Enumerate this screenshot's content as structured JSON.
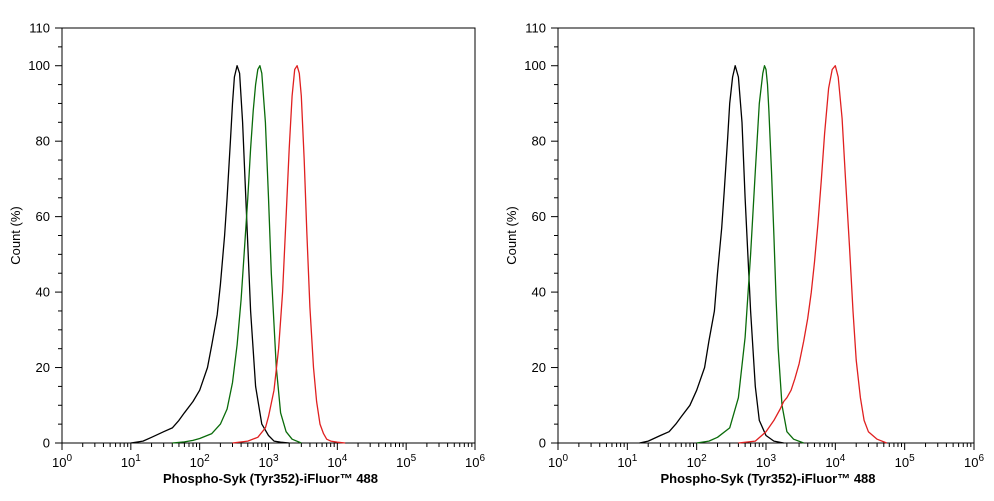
{
  "chart_data": [
    {
      "type": "line",
      "title": "",
      "xlabel": "Phospho-Syk (Tyr352)-iFluor™ 488",
      "ylabel": "Count  (%)",
      "x_scale": "log10",
      "xlim": [
        1,
        1000000
      ],
      "ylim": [
        0,
        110
      ],
      "x_ticks": [
        "10^0",
        "10^1",
        "10^2",
        "10^3",
        "10^4",
        "10^5",
        "10^6"
      ],
      "y_ticks": [
        0,
        20,
        40,
        60,
        80,
        100,
        110
      ],
      "grid": false,
      "legend": "none",
      "series": [
        {
          "color": "#000000",
          "x": [
            10,
            15,
            20,
            30,
            40,
            50,
            60,
            80,
            100,
            130,
            150,
            180,
            200,
            230,
            250,
            280,
            300,
            320,
            350,
            380,
            420,
            480,
            550,
            650,
            800,
            1000,
            1200,
            1500,
            2000
          ],
          "y": [
            0,
            0.5,
            1.5,
            3,
            4,
            6,
            8,
            11,
            14,
            20,
            26,
            34,
            42,
            55,
            65,
            80,
            90,
            97,
            100,
            98,
            85,
            60,
            35,
            15,
            5,
            2,
            0.5,
            0.2,
            0
          ]
        },
        {
          "color": "#0a6b0a",
          "x": [
            40,
            60,
            80,
            100,
            150,
            200,
            250,
            300,
            350,
            400,
            450,
            500,
            550,
            600,
            650,
            700,
            750,
            800,
            900,
            1000,
            1100,
            1300,
            1500,
            1800,
            2200,
            3000
          ],
          "y": [
            0,
            0.3,
            0.7,
            1.2,
            2.5,
            5,
            9,
            16,
            26,
            38,
            52,
            65,
            78,
            88,
            95,
            99,
            100,
            98,
            85,
            65,
            45,
            20,
            8,
            3,
            1,
            0
          ]
        },
        {
          "color": "#e02020",
          "x": [
            300,
            500,
            700,
            900,
            1000,
            1200,
            1400,
            1600,
            1800,
            2000,
            2200,
            2400,
            2600,
            2800,
            3000,
            3300,
            3600,
            4000,
            4500,
            5000,
            5600,
            6300,
            7000,
            8000,
            10000,
            13000
          ],
          "y": [
            0,
            0.5,
            1.5,
            4,
            7,
            14,
            25,
            40,
            60,
            78,
            92,
            99,
            100,
            98,
            92,
            75,
            56,
            36,
            20,
            11,
            5,
            2.5,
            1,
            0.5,
            0.2,
            0
          ]
        }
      ]
    },
    {
      "type": "line",
      "title": "",
      "xlabel": "Phospho-Syk (Tyr352)-iFluor™ 488",
      "ylabel": "Count  (%)",
      "x_scale": "log10",
      "xlim": [
        1,
        1000000
      ],
      "ylim": [
        0,
        110
      ],
      "x_ticks": [
        "10^0",
        "10^1",
        "10^2",
        "10^3",
        "10^4",
        "10^5",
        "10^6"
      ],
      "y_ticks": [
        0,
        20,
        40,
        60,
        80,
        100,
        110
      ],
      "grid": false,
      "legend": "none",
      "series": [
        {
          "color": "#000000",
          "x": [
            15,
            20,
            30,
            40,
            50,
            60,
            80,
            100,
            130,
            150,
            180,
            200,
            230,
            250,
            280,
            300,
            330,
            360,
            400,
            450,
            500,
            600,
            700,
            800,
            1000,
            1300,
            1800
          ],
          "y": [
            0,
            0.5,
            2,
            3,
            5,
            7,
            10,
            14,
            20,
            27,
            35,
            45,
            57,
            67,
            81,
            90,
            97,
            100,
            97,
            85,
            65,
            35,
            15,
            6,
            2,
            0.5,
            0
          ]
        },
        {
          "color": "#0a6b0a",
          "x": [
            100,
            150,
            200,
            300,
            400,
            500,
            600,
            700,
            800,
            900,
            950,
            1000,
            1050,
            1100,
            1200,
            1300,
            1400,
            1500,
            1700,
            2000,
            2500,
            3500
          ],
          "y": [
            0,
            0.5,
            1.5,
            4,
            12,
            28,
            50,
            72,
            90,
            98,
            100,
            99,
            95,
            88,
            72,
            55,
            38,
            25,
            10,
            3,
            1,
            0
          ]
        },
        {
          "color": "#e02020",
          "x": [
            400,
            700,
            1000,
            1300,
            1600,
            1800,
            2000,
            2300,
            2600,
            3000,
            3500,
            4000,
            4500,
            5000,
            5600,
            6300,
            7000,
            8000,
            9000,
            10000,
            11000,
            12500,
            14000,
            16000,
            18000,
            20000,
            23000,
            26000,
            30000,
            40000,
            55000
          ],
          "y": [
            0,
            0.5,
            3,
            6,
            9,
            11,
            12,
            14,
            17,
            21,
            27,
            33,
            40,
            48,
            58,
            70,
            82,
            94,
            99,
            100,
            97,
            86,
            70,
            52,
            35,
            22,
            12,
            6,
            3,
            1,
            0
          ]
        }
      ]
    }
  ]
}
